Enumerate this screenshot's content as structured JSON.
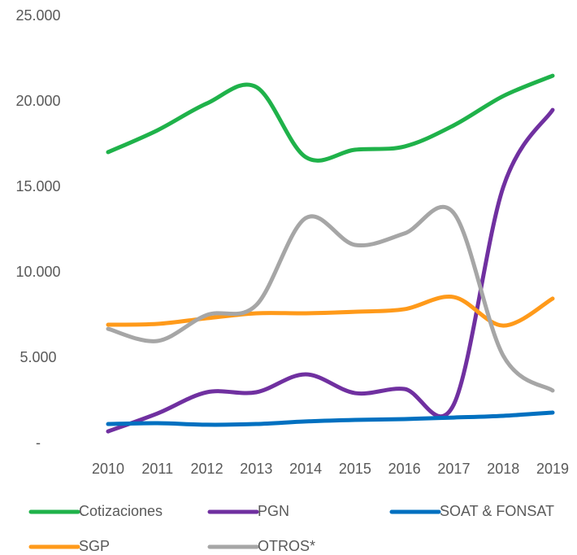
{
  "chart_data": {
    "type": "line",
    "categories": [
      "2010",
      "2011",
      "2012",
      "2013",
      "2014",
      "2015",
      "2016",
      "2017",
      "2018",
      "2019"
    ],
    "series": [
      {
        "name": "Cotizaciones",
        "color": "#1fb24a",
        "values": [
          17050,
          18330,
          19900,
          20860,
          16760,
          17190,
          17380,
          18620,
          20330,
          21520
        ]
      },
      {
        "name": "PGN",
        "color": "#7030a0",
        "values": [
          710,
          1760,
          3000,
          3000,
          4050,
          2950,
          3190,
          2290,
          15000,
          19520
        ]
      },
      {
        "name": "SOAT & FONSAT",
        "color": "#0070c0",
        "values": [
          1140,
          1190,
          1100,
          1140,
          1290,
          1380,
          1430,
          1520,
          1620,
          1810
        ]
      },
      {
        "name": "SGP",
        "color": "#ff9a1a",
        "values": [
          6950,
          7000,
          7330,
          7620,
          7620,
          7710,
          7860,
          8570,
          6900,
          8480
        ]
      },
      {
        "name": "OTROS*",
        "color": "#a6a6a6",
        "values": [
          6710,
          6000,
          7520,
          8100,
          13190,
          11620,
          12290,
          13480,
          5140,
          3100
        ]
      }
    ],
    "ylim": [
      0,
      25000
    ],
    "yticks": [
      {
        "value": 0,
        "label": "-"
      },
      {
        "value": 5000,
        "label": "5.000"
      },
      {
        "value": 10000,
        "label": "10.000"
      },
      {
        "value": 15000,
        "label": "15.000"
      },
      {
        "value": 20000,
        "label": "20.000"
      },
      {
        "value": 25000,
        "label": "25.000"
      }
    ],
    "smooth": true
  }
}
